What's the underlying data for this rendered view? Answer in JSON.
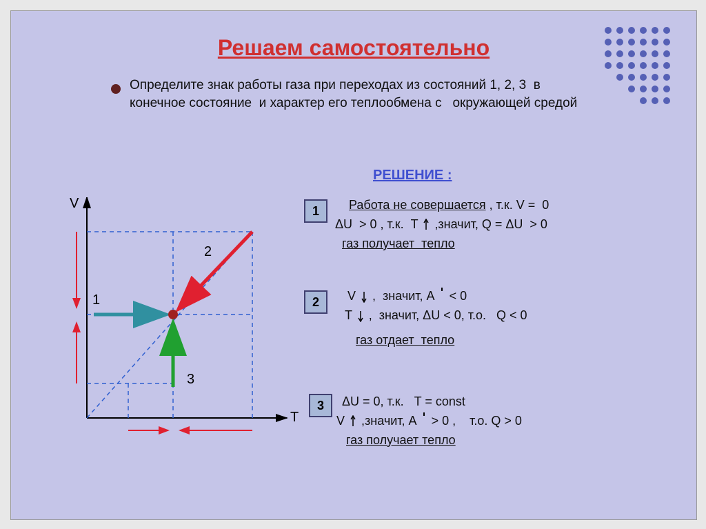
{
  "title": "Решаем самостоятельно",
  "task": "Определите знак работы газа при переходах из состояний 1, 2, 3  в конечное состояние  и характер его теплообмена с   окружающей средой",
  "solution_label": "РЕШЕНИЕ :",
  "boxes": {
    "b1": "1",
    "b2": "2",
    "b3": "3"
  },
  "sol1": {
    "line1a": "Работа не совершается",
    "line1b": " , т.к. V =  0",
    "line2": "ΔU  > 0 , т.к.  T ",
    "line2b": ",значит, Q = ΔU  > 0",
    "line3": "газ получает  тепло"
  },
  "sol2": {
    "line1": "V",
    "line1b": " ,  значит, A ",
    "line1c": "< 0",
    "line2": "T ",
    "line2b": " ,  значит, ΔU < 0, т.о.   Q < 0",
    "line3": "газ отдает  тепло"
  },
  "sol3": {
    "line1": "ΔU = 0, т.к.   T = const",
    "line2": "V",
    "line2b": " ,значит, A ",
    "line2c": "> 0 ,    т.о. Q > 0",
    "line3": "газ получает тепло"
  },
  "graph": {
    "V_label": "V",
    "T_label": "T",
    "p1": "1",
    "p2": "2",
    "p3": "3"
  },
  "colors": {
    "bg": "#c5c5e8",
    "title": "#d03030",
    "axis": "#000000",
    "dashed": "#3060d0",
    "teal_arrow": "#3090a0",
    "green_arrow": "#20a030",
    "red_arrow": "#e02030",
    "point": "#a02020"
  },
  "dot_pattern": {
    "cols": 6,
    "rows": 7,
    "spacing": 17,
    "r": 5,
    "color": "#5560b5"
  }
}
